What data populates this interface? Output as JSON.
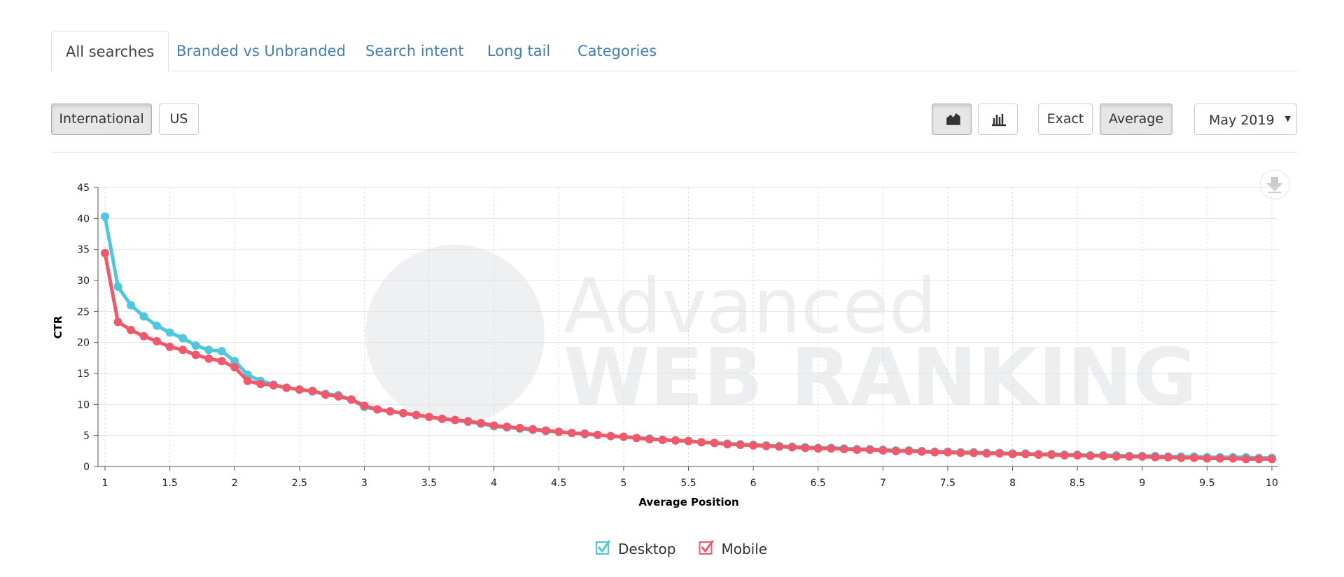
{
  "tabs": [
    "All searches",
    "Branded vs Unbranded",
    "Search intent",
    "Long tail",
    "Categories"
  ],
  "region_buttons": [
    "International",
    "US"
  ],
  "view_buttons": [
    "Exact",
    "Average"
  ],
  "month_select": "May 2019",
  "watermark": [
    "Advanced",
    "WEB RANKING"
  ],
  "chart_data": {
    "type": "line",
    "xlabel": "Average Position",
    "ylabel": "CTR",
    "x": [
      1,
      1.1,
      1.2,
      1.3,
      1.4,
      1.5,
      1.6,
      1.7,
      1.8,
      1.9,
      2,
      2.1,
      2.2,
      2.3,
      2.4,
      2.5,
      2.6,
      2.7,
      2.8,
      2.9,
      3,
      3.1,
      3.2,
      3.3,
      3.4,
      3.5,
      3.6,
      3.7,
      3.8,
      3.9,
      4,
      4.1,
      4.2,
      4.3,
      4.4,
      4.5,
      4.6,
      4.7,
      4.8,
      4.9,
      5,
      5.1,
      5.2,
      5.3,
      5.4,
      5.5,
      5.6,
      5.7,
      5.8,
      5.9,
      6,
      6.1,
      6.2,
      6.3,
      6.4,
      6.5,
      6.6,
      6.7,
      6.8,
      6.9,
      7,
      7.1,
      7.2,
      7.3,
      7.4,
      7.5,
      7.6,
      7.7,
      7.8,
      7.9,
      8,
      8.1,
      8.2,
      8.3,
      8.4,
      8.5,
      8.6,
      8.7,
      8.8,
      8.9,
      9,
      9.1,
      9.2,
      9.3,
      9.4,
      9.5,
      9.6,
      9.7,
      9.8,
      9.9,
      10
    ],
    "series": [
      {
        "name": "Desktop",
        "color": "#4fc6dc",
        "values": [
          40.3,
          29,
          26,
          24.2,
          22.7,
          21.6,
          20.7,
          19.5,
          18.8,
          18.6,
          17,
          14.8,
          13.8,
          13.2,
          12.7,
          12.4,
          12.1,
          11.7,
          11.5,
          10.8,
          9.6,
          9.2,
          8.9,
          8.6,
          8.3,
          8,
          7.7,
          7.5,
          7.2,
          6.9,
          6.5,
          6.3,
          6.1,
          5.9,
          5.7,
          5.6,
          5.4,
          5.2,
          5.1,
          4.9,
          4.8,
          4.6,
          4.5,
          4.3,
          4.2,
          4.1,
          3.9,
          3.8,
          3.7,
          3.6,
          3.5,
          3.4,
          3.3,
          3.2,
          3.1,
          3,
          3,
          2.9,
          2.8,
          2.8,
          2.7,
          2.6,
          2.6,
          2.5,
          2.4,
          2.4,
          2.3,
          2.3,
          2.2,
          2.2,
          2.1,
          2.1,
          2,
          2,
          1.9,
          1.9,
          1.8,
          1.8,
          1.8,
          1.7,
          1.7,
          1.7,
          1.6,
          1.6,
          1.6,
          1.5,
          1.5,
          1.5,
          1.5,
          1.4,
          1.4
        ]
      },
      {
        "name": "Mobile",
        "color": "#ee5a6b",
        "values": [
          34.4,
          23.3,
          22,
          21,
          20.2,
          19.3,
          18.8,
          18,
          17.4,
          17,
          16,
          13.8,
          13.3,
          13.1,
          12.7,
          12.4,
          12.2,
          11.6,
          11.3,
          10.8,
          9.8,
          9.2,
          8.9,
          8.6,
          8.3,
          8,
          7.7,
          7.5,
          7.3,
          7,
          6.6,
          6.4,
          6.2,
          6,
          5.8,
          5.6,
          5.4,
          5.3,
          5.1,
          4.9,
          4.8,
          4.6,
          4.4,
          4.3,
          4.2,
          4.1,
          3.9,
          3.8,
          3.6,
          3.5,
          3.4,
          3.3,
          3.2,
          3.1,
          3,
          2.9,
          2.9,
          2.8,
          2.7,
          2.7,
          2.6,
          2.5,
          2.5,
          2.4,
          2.3,
          2.3,
          2.2,
          2.2,
          2.1,
          2.1,
          2,
          2,
          1.9,
          1.9,
          1.8,
          1.8,
          1.7,
          1.7,
          1.6,
          1.6,
          1.6,
          1.5,
          1.5,
          1.4,
          1.4,
          1.3,
          1.3,
          1.3,
          1.2,
          1.2,
          1.2
        ]
      }
    ],
    "xlim": [
      1,
      10
    ],
    "ylim": [
      0,
      45
    ],
    "xticks": [
      1,
      1.5,
      2,
      2.5,
      3,
      3.5,
      4,
      4.5,
      5,
      5.5,
      6,
      6.5,
      7,
      7.5,
      8,
      8.5,
      9,
      9.5,
      10
    ],
    "yticks": [
      0,
      5,
      10,
      15,
      20,
      25,
      30,
      35,
      40,
      45
    ],
    "grid": true
  }
}
